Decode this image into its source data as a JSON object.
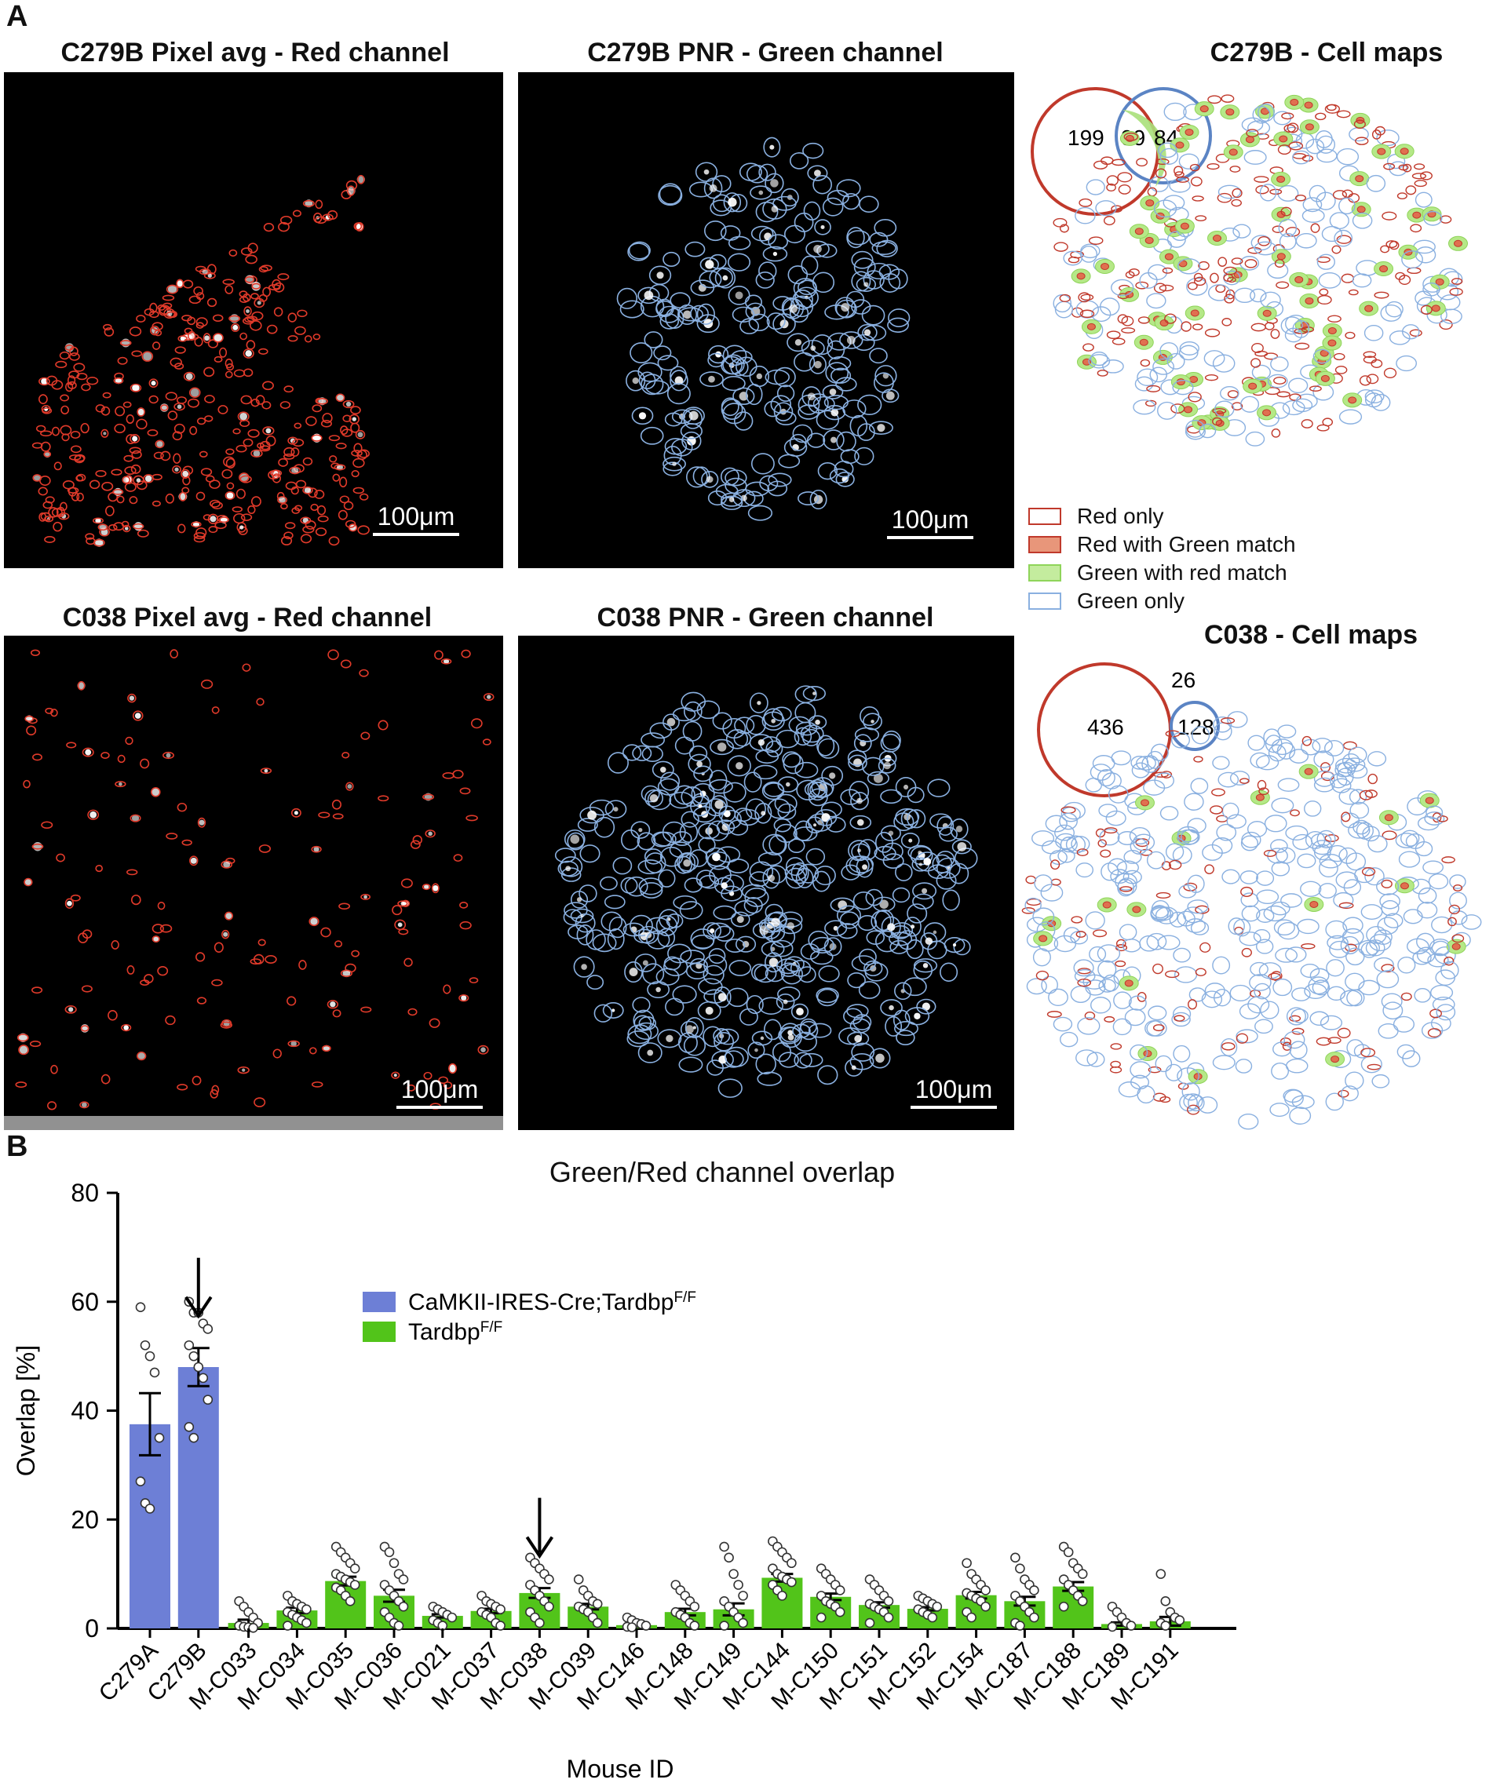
{
  "panel_labels": {
    "a": "A",
    "b": "B"
  },
  "panel_a": {
    "images": [
      {
        "title": "C279B Pixel avg - Red channel",
        "scale": "100μm",
        "outline": "#e03a2a",
        "kind": "red"
      },
      {
        "title": "C279B PNR - Green channel",
        "scale": "100μm",
        "outline": "#8ab0e0",
        "kind": "green"
      },
      {
        "title": "C038 Pixel avg - Red channel",
        "scale": "100μm",
        "outline": "#e03a2a",
        "kind": "red"
      },
      {
        "title": "C038 PNR - Green channel",
        "scale": "100μm",
        "outline": "#8ab0e0",
        "kind": "green"
      }
    ],
    "cellmaps": [
      {
        "title": "C279B - Cell maps",
        "venn": {
          "red_only": "199",
          "overlap": "99",
          "green_only": "84"
        }
      },
      {
        "title": "C038 - Cell maps",
        "venn": {
          "red_only": "436",
          "overlap": "26",
          "green_only": "128"
        }
      }
    ],
    "legend": [
      {
        "label": "Red only",
        "fill": "#ffffff",
        "stroke": "#c0392b"
      },
      {
        "label": "Red with Green match",
        "fill": "#e8967a",
        "stroke": "#c0392b"
      },
      {
        "label": "Green with red match",
        "fill": "#c4ec9e",
        "stroke": "#8fd45a"
      },
      {
        "label": "Green only",
        "fill": "#ffffff",
        "stroke": "#8ab0e0"
      }
    ],
    "colors": {
      "red": "#c0392b",
      "green_fill": "#a8e07a",
      "blue": "#5b84c4"
    }
  },
  "chart_data": {
    "type": "bar",
    "title": "Green/Red channel overlap",
    "xlabel": "Mouse ID",
    "ylabel": "Overlap [%]",
    "ylim": [
      0,
      80
    ],
    "yticks": [
      0,
      20,
      40,
      60,
      80
    ],
    "categories": [
      "C279A",
      "C279B",
      "M-C033",
      "M-C034",
      "M-C035",
      "M-C036",
      "M-C021",
      "M-C037",
      "M-C038",
      "M-C039",
      "M-C146",
      "M-C148",
      "M-C149",
      "M-C144",
      "M-C150",
      "M-C151",
      "M-C152",
      "M-C154",
      "M-C187",
      "M-C188",
      "M-C189",
      "M-C191"
    ],
    "values": [
      37.5,
      48,
      1.0,
      3.3,
      8.7,
      6.0,
      2.3,
      3.2,
      6.5,
      4.0,
      0.6,
      3.0,
      3.5,
      9.3,
      5.8,
      4.3,
      3.6,
      6.1,
      5.0,
      7.7,
      0.8,
      1.3
    ],
    "sem": [
      5.7,
      3.5,
      0.6,
      0.5,
      0.8,
      1.1,
      0.3,
      0.4,
      0.9,
      0.5,
      0.2,
      0.6,
      1.1,
      0.7,
      0.6,
      0.5,
      0.3,
      0.6,
      0.8,
      0.8,
      0.3,
      0.8
    ],
    "groups": [
      "blue",
      "blue",
      "green",
      "green",
      "green",
      "green",
      "green",
      "green",
      "green",
      "green",
      "green",
      "green",
      "green",
      "green",
      "green",
      "green",
      "green",
      "green",
      "green",
      "green",
      "green",
      "green"
    ],
    "points": [
      [
        59,
        52,
        50,
        47,
        35,
        27,
        23,
        22
      ],
      [
        60,
        58,
        58,
        56,
        55,
        52,
        50,
        48,
        46,
        42,
        37,
        35
      ],
      [
        5,
        4,
        3,
        2,
        1,
        0.5,
        0.3,
        0.2,
        0.1
      ],
      [
        6,
        5,
        4.5,
        4,
        3.5,
        3,
        2.5,
        2,
        1.5,
        1,
        0.5
      ],
      [
        15,
        14,
        13,
        12,
        11,
        10,
        9.5,
        9,
        8.5,
        8,
        7.5,
        7,
        6,
        5
      ],
      [
        15,
        14,
        12,
        10,
        9,
        8,
        7,
        6,
        5,
        4,
        3,
        2,
        1,
        0.5
      ],
      [
        4,
        3.5,
        3,
        2.5,
        2,
        1.5,
        1,
        0.5
      ],
      [
        6,
        5,
        4.5,
        4,
        3.5,
        3,
        2.5,
        2,
        1,
        0.5
      ],
      [
        13,
        12,
        11,
        10,
        9,
        8,
        7,
        6,
        5,
        4,
        3,
        2,
        1
      ],
      [
        9,
        7,
        6,
        5,
        4.5,
        4,
        3.5,
        3,
        2,
        1
      ],
      [
        2,
        1.5,
        1,
        0.8,
        0.5,
        0.3,
        0.2
      ],
      [
        8,
        7,
        6,
        5,
        4,
        3,
        2.5,
        2,
        1,
        0.5
      ],
      [
        15,
        13,
        10,
        8,
        6,
        5,
        4,
        3,
        2,
        1,
        0.5
      ],
      [
        16,
        15,
        14,
        13,
        12,
        11,
        10,
        9.5,
        9,
        8.5,
        8,
        7,
        6
      ],
      [
        11,
        10,
        9,
        8,
        7,
        6,
        5,
        4.5,
        4,
        3,
        2
      ],
      [
        9,
        8,
        7,
        6,
        5,
        4.5,
        4,
        3.5,
        3,
        2,
        1
      ],
      [
        6,
        5.5,
        5,
        4.5,
        4,
        3.5,
        3,
        2.5,
        2
      ],
      [
        12,
        10,
        9,
        8,
        7,
        6.5,
        6,
        5.5,
        5,
        4,
        3,
        2
      ],
      [
        13,
        11,
        9,
        8,
        7,
        6,
        5,
        4,
        3,
        2,
        1,
        0.5
      ],
      [
        15,
        14,
        12,
        11,
        10,
        9,
        8,
        7,
        6,
        5,
        4
      ],
      [
        4,
        3,
        2,
        1,
        0.5,
        0.3
      ],
      [
        10,
        5,
        3,
        2,
        1.5,
        1,
        0.5
      ]
    ],
    "arrows": [
      "C279B",
      "M-C038"
    ],
    "legend": [
      {
        "label": "CaMKII-IRES-Cre;Tardbp",
        "sup": "F/F",
        "color": "#6d7fd6"
      },
      {
        "label": "Tardbp",
        "sup": "F/F",
        "color": "#52c41a"
      }
    ],
    "colors": {
      "blue": "#6d7fd6",
      "green": "#52c41a"
    }
  }
}
